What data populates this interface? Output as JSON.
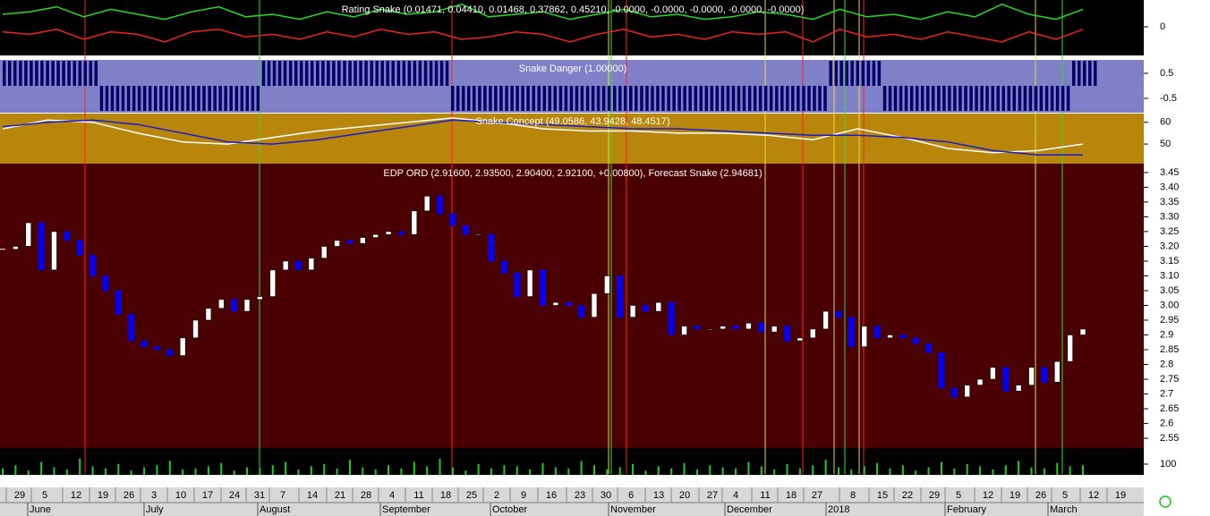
{
  "chart_data": [
    {
      "type": "line",
      "title": "Rating Snake (0.01471, 0.04410, 0.01468, 0.37862, 0.45210, -0.0000, -0.0000, -0.0000, -0.0000, -0.0000)",
      "ylim": [
        -1,
        1
      ],
      "yticks": [
        0
      ],
      "series": [
        {
          "color": "#22dd22",
          "values": [
            0.5,
            0.6,
            0.8,
            0.4,
            0.7,
            0.5,
            0.3,
            0.6,
            0.8,
            0.4,
            0.5,
            0.3,
            0.6,
            0.4,
            0.7,
            0.5,
            0.6,
            0.9,
            0.4,
            0.5,
            0.6,
            0.3,
            0.5,
            0.7,
            0.4,
            0.5,
            0.3,
            0.4,
            0.6,
            0.5,
            0.3,
            0.7,
            0.4,
            0.5,
            0.3,
            0.6,
            0.4,
            0.9,
            0.5,
            0.3,
            0.7
          ]
        },
        {
          "color": "#ee2222",
          "values": [
            -0.2,
            -0.3,
            -0.1,
            -0.5,
            -0.2,
            -0.3,
            -0.6,
            -0.2,
            -0.1,
            -0.4,
            -0.3,
            -0.5,
            -0.2,
            -0.4,
            -0.1,
            -0.3,
            -0.2,
            -0.5,
            -0.4,
            -0.2,
            -0.3,
            -0.6,
            -0.3,
            -0.1,
            -0.4,
            -0.3,
            -0.5,
            -0.2,
            -0.3,
            -0.2,
            -0.6,
            -0.1,
            -0.4,
            -0.3,
            -0.5,
            -0.2,
            -0.4,
            -0.6,
            -0.2,
            -0.5,
            -0.1
          ]
        }
      ]
    },
    {
      "type": "bar",
      "title": "Snake Danger (1.00000)",
      "ylim": [
        -1,
        1
      ],
      "yticks": [
        0.5,
        -0.5
      ],
      "color": "#000066",
      "values": [
        1,
        1,
        1,
        1,
        -1,
        -1,
        -1,
        -1,
        -1,
        -1,
        1,
        1,
        1,
        1,
        1,
        1,
        1,
        -1,
        -1,
        -1,
        -1,
        -1,
        -1,
        -1,
        -1,
        -1,
        -1,
        -1,
        -1,
        -1,
        -1,
        1,
        1,
        -1,
        -1,
        -1,
        -1,
        -1,
        -1,
        -1,
        1
      ]
    },
    {
      "type": "line",
      "title": "Snake Concept (49.0586, 43.9428, 48.4517)",
      "ylim": [
        41,
        64
      ],
      "yticks": [
        60,
        50
      ],
      "series": [
        {
          "color": "#ffffff",
          "values": [
            57,
            61,
            60,
            55,
            51,
            50,
            53,
            56,
            58,
            60,
            62,
            60,
            57,
            56,
            56,
            55,
            55,
            54,
            52,
            57,
            53,
            48,
            46,
            47,
            50
          ]
        },
        {
          "color": "#1a1acc",
          "values": [
            58,
            60,
            61,
            59,
            55,
            51,
            50,
            52,
            55,
            58,
            61,
            60,
            59,
            58,
            57,
            57,
            56,
            55,
            54,
            54,
            53,
            51,
            47,
            45,
            45
          ]
        }
      ]
    },
    {
      "type": "candlestick",
      "title": "EDP ORD (2.91600, 2.93500, 2.90400, 2.92100, +0.00800), Forecast Snake (2.94681)",
      "ylim": [
        2.52,
        3.48
      ],
      "yticks": [
        2.55,
        2.6,
        2.65,
        2.7,
        2.75,
        2.8,
        2.85,
        2.9,
        2.95,
        {
          "value": 3,
          "label": "3.00"
        },
        3.05,
        {
          "value": 3.1,
          "label": "3.10"
        },
        3.15,
        {
          "value": 3.2,
          "label": "3.20"
        },
        3.25,
        {
          "value": 3.3,
          "label": "3.30"
        },
        3.35,
        {
          "value": 3.4,
          "label": "3.40"
        },
        3.45
      ],
      "up_color": "#ffffff",
      "down_color": "#0000ff",
      "values": [
        3.19,
        3.2,
        3.28,
        3.12,
        3.25,
        3.22,
        3.17,
        3.1,
        3.05,
        2.97,
        2.88,
        2.86,
        2.85,
        2.83,
        2.89,
        2.95,
        2.99,
        3.02,
        2.98,
        3.02,
        3.03,
        3.12,
        3.15,
        3.12,
        3.16,
        3.2,
        3.22,
        3.21,
        3.23,
        3.24,
        3.25,
        3.24,
        3.32,
        3.37,
        3.31,
        3.27,
        3.24,
        3.24,
        3.15,
        3.11,
        3.03,
        3.12,
        3.0,
        3.01,
        3.0,
        2.96,
        3.04,
        3.1,
        2.96,
        3.0,
        2.98,
        3.01,
        2.9,
        2.93,
        2.92,
        2.92,
        2.93,
        2.92,
        2.94,
        2.91,
        2.93,
        2.88,
        2.89,
        2.92,
        2.98,
        2.96,
        2.86,
        2.93,
        2.89,
        2.9,
        2.89,
        2.87,
        2.84,
        2.72,
        2.69,
        2.73,
        2.75,
        2.79,
        2.71,
        2.73,
        2.79,
        2.74,
        2.81,
        2.9,
        2.92
      ]
    },
    {
      "type": "bar",
      "ylim": [
        0,
        250
      ],
      "yticks": [
        100
      ],
      "color": "#22cc22",
      "values": [
        60,
        90,
        40,
        120,
        70,
        50,
        150,
        80,
        60,
        100,
        40,
        70,
        90,
        130,
        50,
        60,
        80,
        110,
        40,
        70,
        60,
        90,
        120,
        50,
        80,
        100,
        60,
        140,
        70,
        50,
        90,
        60,
        120,
        80,
        150,
        70,
        40,
        100,
        60,
        90,
        80,
        50,
        110,
        70,
        60,
        130,
        90,
        50,
        70,
        100,
        40,
        80,
        60,
        110,
        50,
        90,
        70,
        60,
        120,
        80,
        50,
        100,
        60,
        90,
        140,
        70,
        50,
        80,
        110,
        60,
        90,
        40,
        70,
        120,
        60,
        100,
        80,
        50,
        90,
        130,
        70,
        60,
        110,
        80,
        90
      ],
      "x_day_labels": [
        "29",
        "5",
        "12",
        "19",
        "26",
        "3",
        "10",
        "17",
        "24",
        "31",
        "7",
        "14",
        "21",
        "28",
        "4",
        "11",
        "18",
        "25",
        "2",
        "9",
        "16",
        "23",
        "30",
        "6",
        "13",
        "20",
        "27",
        "4",
        "11",
        "18",
        "27",
        "8",
        "15",
        "22",
        "29",
        "5",
        "12",
        "19",
        "26",
        "5",
        "12",
        "19"
      ],
      "x_month_labels": [
        "June",
        "July",
        "August",
        "September",
        "October",
        "November",
        "December",
        "2018",
        "February",
        "March"
      ]
    }
  ]
}
